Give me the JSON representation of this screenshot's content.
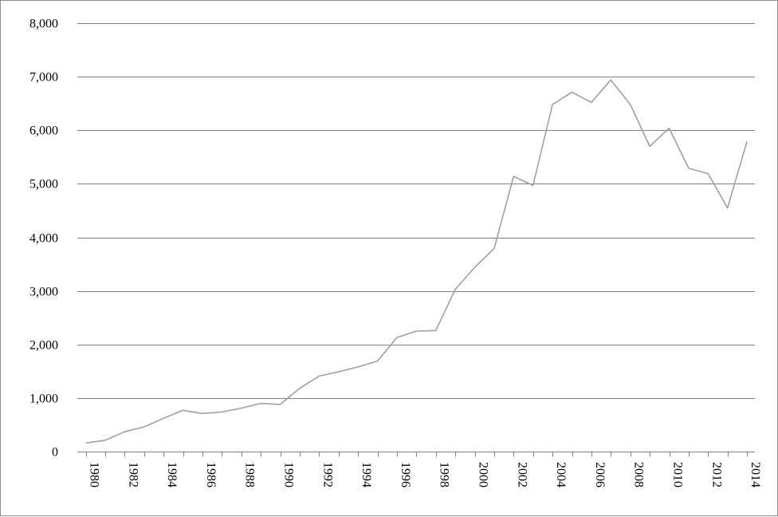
{
  "chart_data": {
    "type": "line",
    "title": "",
    "xlabel": "",
    "ylabel": "",
    "ylim": [
      0,
      8000
    ],
    "grid": true,
    "legend": "none",
    "y_ticks": [
      "0",
      "1,000",
      "2,000",
      "3,000",
      "4,000",
      "5,000",
      "6,000",
      "7,000",
      "8,000"
    ],
    "x_tick_labels": [
      "1980",
      "1982",
      "1984",
      "1986",
      "1988",
      "1990",
      "1992",
      "1994",
      "1996",
      "1998",
      "2000",
      "2002",
      "2004",
      "2006",
      "2008",
      "2010",
      "2012",
      "2014"
    ],
    "x": [
      1980,
      1981,
      1982,
      1983,
      1984,
      1985,
      1986,
      1987,
      1988,
      1989,
      1990,
      1991,
      1992,
      1993,
      1994,
      1995,
      1996,
      1997,
      1998,
      1999,
      2000,
      2001,
      2002,
      2003,
      2004,
      2005,
      2006,
      2007,
      2008,
      2009,
      2010,
      2011,
      2012,
      2013,
      2014
    ],
    "series": [
      {
        "values": [
          160,
          210,
          370,
          460,
          620,
          770,
          710,
          740,
          810,
          900,
          880,
          1180,
          1410,
          1490,
          1580,
          1690,
          2130,
          2250,
          2260,
          3030,
          3440,
          3790,
          5140,
          4970,
          6480,
          6710,
          6520,
          6940,
          6480,
          5700,
          6040,
          5290,
          5190,
          4550,
          5790
        ]
      }
    ],
    "colors": {
      "line": "#a0a0a0",
      "grid": "#808080",
      "axis": "#808080",
      "frame": "#8c8c8c"
    }
  }
}
